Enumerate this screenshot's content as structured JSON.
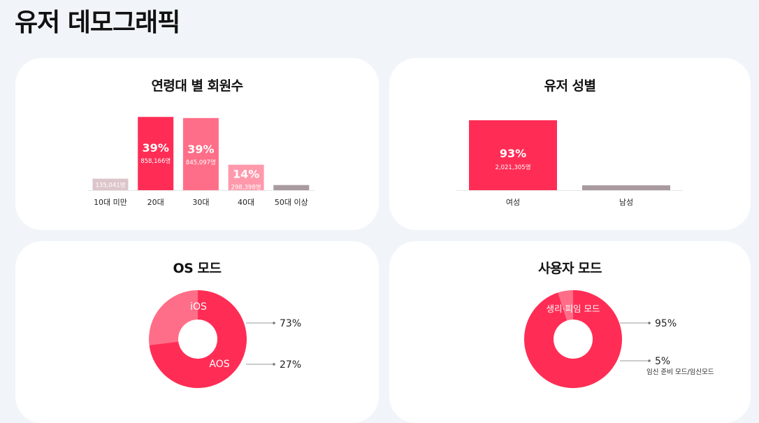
{
  "page": {
    "title": "유저 데모그래픽"
  },
  "colors": {
    "primary": "#ff2d55",
    "secondary": "#ff6e88",
    "light": "#ff98ab",
    "pale": "#dcc5cb",
    "gray": "#a89a9e",
    "axis": "#e6e6e6"
  },
  "chart_data": [
    {
      "id": "age",
      "type": "bar",
      "title": "연령대 별 회원수",
      "categories": [
        "10대 미만",
        "20대",
        "30대",
        "40대",
        "50대 이상"
      ],
      "values": [
        135041,
        858166,
        845097,
        298398,
        60000
      ],
      "percent_labels": [
        "",
        "39%",
        "39%",
        "14%",
        ""
      ],
      "count_labels": [
        "135,041명",
        "858,166명",
        "845,097명",
        "298,398명",
        ""
      ],
      "colors": [
        "#dcc5cb",
        "#ff2d55",
        "#ff6e88",
        "#ff98ab",
        "#a89a9e"
      ],
      "ylim": [
        0,
        860000
      ]
    },
    {
      "id": "gender",
      "type": "bar",
      "title": "유저 성별",
      "categories": [
        "여성",
        "남성"
      ],
      "values": [
        2021305,
        140000
      ],
      "percent_labels": [
        "93%",
        ""
      ],
      "count_labels": [
        "2,021,305명",
        ""
      ],
      "colors": [
        "#ff2d55",
        "#a89a9e"
      ],
      "ylim": [
        0,
        2021305
      ]
    },
    {
      "id": "os",
      "type": "pie",
      "title": "OS 모드",
      "slices": [
        {
          "label": "iOS",
          "value": 73,
          "pct_label": "73%",
          "color": "#ff2d55"
        },
        {
          "label": "AOS",
          "value": 27,
          "pct_label": "27%",
          "color": "#ff6e88"
        }
      ]
    },
    {
      "id": "mode",
      "type": "pie",
      "title": "사용자 모드",
      "slices": [
        {
          "label": "생리·피임 모드",
          "value": 95,
          "pct_label": "95%",
          "color": "#ff2d55"
        },
        {
          "label": "",
          "value": 5,
          "pct_label": "5%",
          "note": "임신 준비 모드/임신모드",
          "color": "#ff6e88"
        }
      ]
    }
  ]
}
